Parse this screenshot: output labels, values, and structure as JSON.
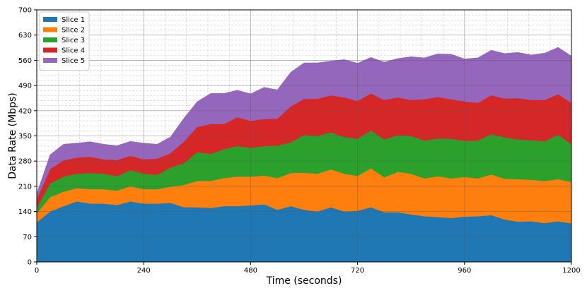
{
  "chart_data": {
    "type": "area",
    "stacked": true,
    "title": "",
    "xlabel": "Time (seconds)",
    "ylabel": "Data Rate (Mbps)",
    "xlim": [
      0,
      1200
    ],
    "ylim": [
      0,
      700
    ],
    "xticks": [
      0,
      240,
      480,
      720,
      960,
      1200
    ],
    "yticks": [
      0,
      70,
      140,
      210,
      280,
      350,
      420,
      490,
      560,
      630,
      700
    ],
    "grid": true,
    "minor_grid": true,
    "legend_position": "top-left",
    "x": [
      0,
      30,
      60,
      90,
      120,
      150,
      180,
      210,
      240,
      270,
      300,
      330,
      360,
      390,
      420,
      450,
      480,
      510,
      540,
      570,
      600,
      630,
      660,
      690,
      720,
      750,
      780,
      810,
      840,
      870,
      900,
      930,
      960,
      990,
      1020,
      1050,
      1080,
      1110,
      1140,
      1170,
      1200
    ],
    "series": [
      {
        "name": "Slice 1",
        "color": "#1f77b4",
        "values": [
          110,
          140,
          155,
          168,
          162,
          162,
          158,
          168,
          162,
          162,
          164,
          152,
          152,
          150,
          155,
          155,
          157,
          160,
          145,
          155,
          145,
          140,
          152,
          140,
          142,
          152,
          138,
          138,
          132,
          127,
          125,
          122,
          126,
          127,
          130,
          118,
          112,
          113,
          108,
          113,
          107
        ]
      },
      {
        "name": "Slice 2",
        "color": "#ff7f0e",
        "values": [
          25,
          40,
          40,
          37,
          40,
          40,
          40,
          42,
          40,
          40,
          45,
          62,
          73,
          75,
          78,
          82,
          80,
          80,
          88,
          92,
          103,
          105,
          105,
          105,
          97,
          108,
          97,
          112,
          113,
          105,
          113,
          110,
          110,
          105,
          113,
          113,
          118,
          115,
          117,
          117,
          115
        ]
      },
      {
        "name": "Slice 3",
        "color": "#2ca02c",
        "values": [
          15,
          38,
          42,
          40,
          45,
          43,
          40,
          45,
          43,
          40,
          53,
          60,
          80,
          75,
          80,
          85,
          80,
          82,
          90,
          85,
          105,
          105,
          103,
          102,
          103,
          105,
          105,
          102,
          105,
          105,
          105,
          110,
          100,
          105,
          112,
          115,
          110,
          110,
          110,
          123,
          105
        ]
      },
      {
        "name": "Slice 4",
        "color": "#d62728",
        "values": [
          25,
          40,
          45,
          45,
          45,
          40,
          45,
          40,
          40,
          45,
          40,
          60,
          70,
          83,
          70,
          80,
          75,
          75,
          75,
          100,
          100,
          103,
          103,
          110,
          105,
          103,
          110,
          105,
          100,
          115,
          115,
          110,
          110,
          105,
          108,
          108,
          115,
          112,
          115,
          113,
          115
        ]
      },
      {
        "name": "Slice 5",
        "color": "#9467bd",
        "values": [
          15,
          40,
          45,
          40,
          42,
          42,
          40,
          40,
          45,
          40,
          45,
          65,
          70,
          85,
          85,
          75,
          75,
          88,
          80,
          95,
          100,
          100,
          95,
          105,
          105,
          100,
          105,
          108,
          120,
          115,
          120,
          125,
          118,
          125,
          125,
          125,
          127,
          125,
          130,
          130,
          130
        ]
      }
    ]
  }
}
